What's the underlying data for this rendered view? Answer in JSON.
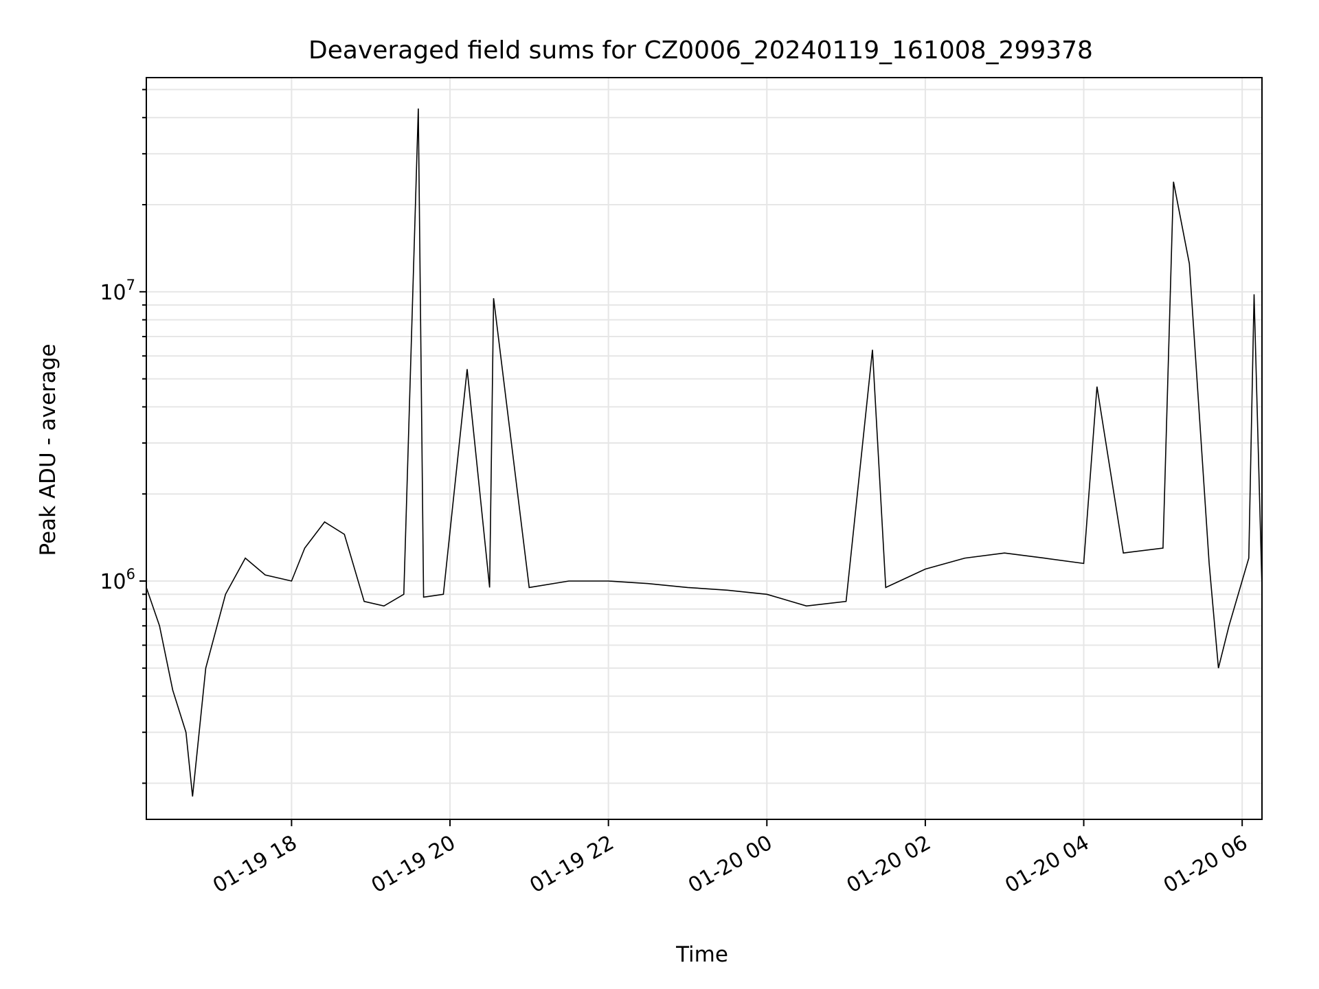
{
  "chart_data": {
    "type": "line",
    "title": "Deaveraged field sums for CZ0006_20240119_161008_299378",
    "xlabel": "Time",
    "ylabel": "Peak ADU - average",
    "yscale": "log",
    "grid": true,
    "line_color": "#000000",
    "grid_color": "#e6e6e6",
    "xlim": [
      "2024-01-19 16:10",
      "2024-01-20 06:15"
    ],
    "ylim": [
      150000,
      55000000
    ],
    "x_ticks": [
      {
        "value": "2024-01-19 18:00",
        "label": "01-19 18"
      },
      {
        "value": "2024-01-19 20:00",
        "label": "01-19 20"
      },
      {
        "value": "2024-01-19 22:00",
        "label": "01-19 22"
      },
      {
        "value": "2024-01-20 00:00",
        "label": "01-20 00"
      },
      {
        "value": "2024-01-20 02:00",
        "label": "01-20 02"
      },
      {
        "value": "2024-01-20 04:00",
        "label": "01-20 04"
      },
      {
        "value": "2024-01-20 06:00",
        "label": "01-20 06"
      }
    ],
    "y_ticks": [
      {
        "value": 1000000,
        "base": "10",
        "exp": "6"
      },
      {
        "value": 10000000,
        "base": "10",
        "exp": "7"
      }
    ],
    "series": [
      {
        "points": [
          [
            "2024-01-19 16:10",
            950000
          ],
          [
            "2024-01-19 16:20",
            700000
          ],
          [
            "2024-01-19 16:30",
            420000
          ],
          [
            "2024-01-19 16:40",
            300000
          ],
          [
            "2024-01-19 16:45",
            180000
          ],
          [
            "2024-01-19 16:55",
            500000
          ],
          [
            "2024-01-19 17:10",
            900000
          ],
          [
            "2024-01-19 17:25",
            1200000
          ],
          [
            "2024-01-19 17:40",
            1050000
          ],
          [
            "2024-01-19 18:00",
            1000000
          ],
          [
            "2024-01-19 18:10",
            1300000
          ],
          [
            "2024-01-19 18:25",
            1600000
          ],
          [
            "2024-01-19 18:40",
            1450000
          ],
          [
            "2024-01-19 18:55",
            850000
          ],
          [
            "2024-01-19 19:10",
            820000
          ],
          [
            "2024-01-19 19:25",
            900000
          ],
          [
            "2024-01-19 19:36",
            43000000
          ],
          [
            "2024-01-19 19:40",
            880000
          ],
          [
            "2024-01-19 19:55",
            900000
          ],
          [
            "2024-01-19 20:13",
            5400000
          ],
          [
            "2024-01-19 20:30",
            950000
          ],
          [
            "2024-01-19 20:33",
            9500000
          ],
          [
            "2024-01-19 21:00",
            950000
          ],
          [
            "2024-01-19 21:30",
            1000000
          ],
          [
            "2024-01-19 22:00",
            1000000
          ],
          [
            "2024-01-19 22:30",
            980000
          ],
          [
            "2024-01-19 23:00",
            950000
          ],
          [
            "2024-01-19 23:30",
            930000
          ],
          [
            "2024-01-20 00:00",
            900000
          ],
          [
            "2024-01-20 00:30",
            820000
          ],
          [
            "2024-01-20 01:00",
            850000
          ],
          [
            "2024-01-20 01:20",
            6300000
          ],
          [
            "2024-01-20 01:30",
            950000
          ],
          [
            "2024-01-20 02:00",
            1100000
          ],
          [
            "2024-01-20 02:30",
            1200000
          ],
          [
            "2024-01-20 03:00",
            1250000
          ],
          [
            "2024-01-20 03:30",
            1200000
          ],
          [
            "2024-01-20 04:00",
            1150000
          ],
          [
            "2024-01-20 04:10",
            4700000
          ],
          [
            "2024-01-20 04:30",
            1250000
          ],
          [
            "2024-01-20 05:00",
            1300000
          ],
          [
            "2024-01-20 05:08",
            24000000
          ],
          [
            "2024-01-20 05:20",
            12500000
          ],
          [
            "2024-01-20 05:35",
            1150000
          ],
          [
            "2024-01-20 05:42",
            500000
          ],
          [
            "2024-01-20 05:50",
            700000
          ],
          [
            "2024-01-20 06:05",
            1200000
          ],
          [
            "2024-01-20 06:09",
            9800000
          ],
          [
            "2024-01-20 06:15",
            950000
          ]
        ]
      }
    ]
  }
}
